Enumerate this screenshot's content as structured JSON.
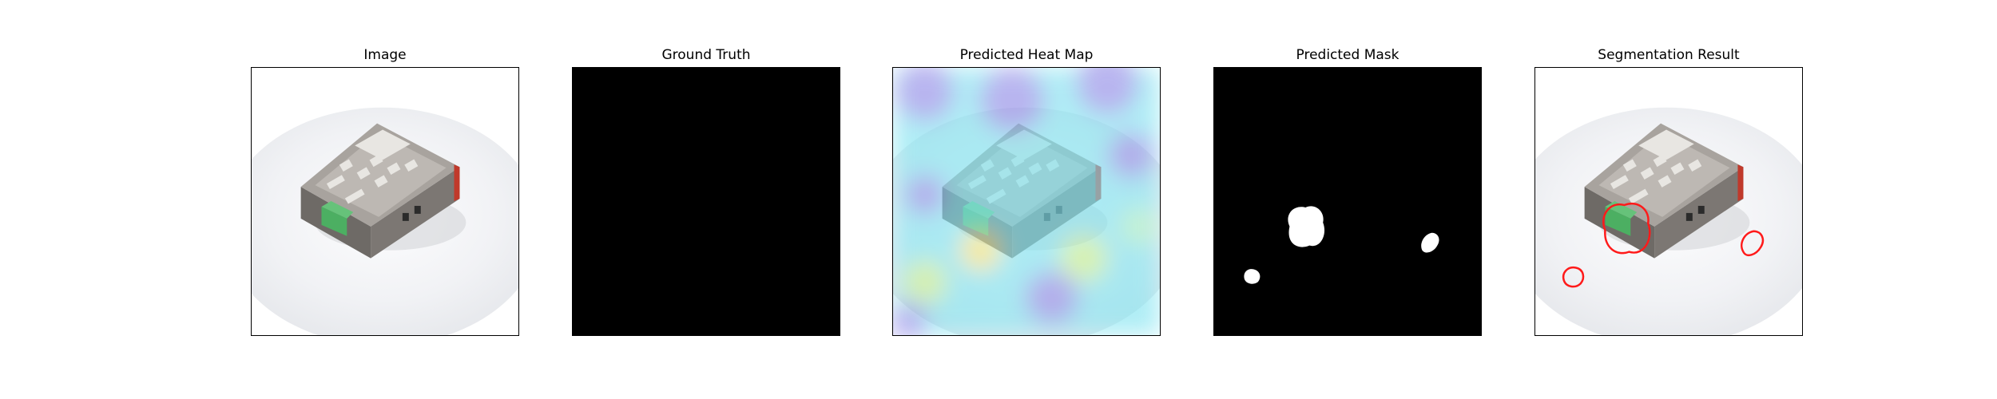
{
  "panels": [
    {
      "title": "Image"
    },
    {
      "title": "Ground Truth"
    },
    {
      "title": "Predicted Heat Map"
    },
    {
      "title": "Predicted Mask"
    },
    {
      "title": "Segmentation Result"
    }
  ],
  "colors": {
    "mask_background": "#000000",
    "mask_foreground": "#ffffff",
    "contour": "#ff1a1a",
    "heatmap_base": "#7fe3f0",
    "heatmap_low": "#8e88e6",
    "heatmap_high": "#f5e46a",
    "device_body": "#a8a39e",
    "device_label": "#e8e6e2",
    "connector": "#4caf62",
    "accent_red": "#c0392b"
  },
  "icons": {
    "object": "industrial-device-photo"
  }
}
